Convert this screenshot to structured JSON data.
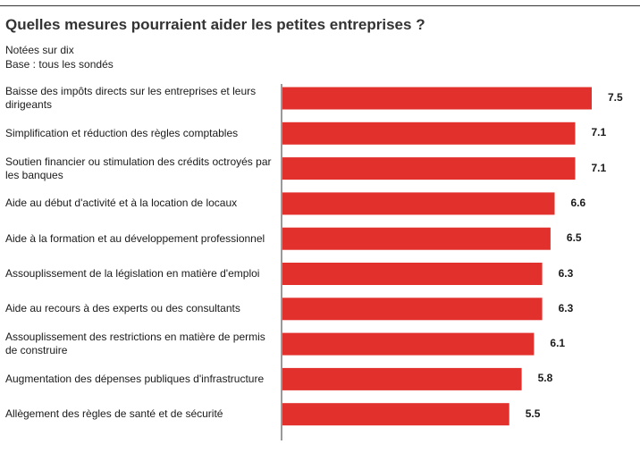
{
  "title": "Quelles mesures pourraient aider les petites entreprises ?",
  "subtitle_line1": "Notées sur dix",
  "subtitle_line2": "Base : tous les sondés",
  "colors": {
    "bar": "#e2302d",
    "axis": "#333333"
  },
  "chart_data": {
    "type": "bar",
    "orientation": "horizontal",
    "title": "Quelles mesures pourraient aider les petites entreprises ?",
    "xlabel": "",
    "ylabel": "",
    "xlim": [
      0,
      7.5
    ],
    "grid": false,
    "categories": [
      "Baisse des impôts directs sur les entreprises et leurs dirigeants",
      "Simplification et réduction des règles comptables",
      "Soutien financier ou stimulation des crédits octroyés par les banques",
      "Aide au début d'activité et à la location de locaux",
      "Aide à la formation et au développement professionnel",
      "Assouplissement de la législation en matière d'emploi",
      "Aide au recours à des experts ou des consultants",
      "Assouplissement des restrictions en matière de permis de construire",
      "Augmentation des dépenses publiques d'infrastructure",
      "Allègement des règles de santé et de sécurité"
    ],
    "values": [
      7.5,
      7.1,
      7.1,
      6.6,
      6.5,
      6.3,
      6.3,
      6.1,
      5.8,
      5.5
    ],
    "value_labels": [
      "7.5",
      "7.1",
      "7.1",
      "6.6",
      "6.5",
      "6.3",
      "6.3",
      "6.1",
      "5.8",
      "5.5"
    ]
  }
}
